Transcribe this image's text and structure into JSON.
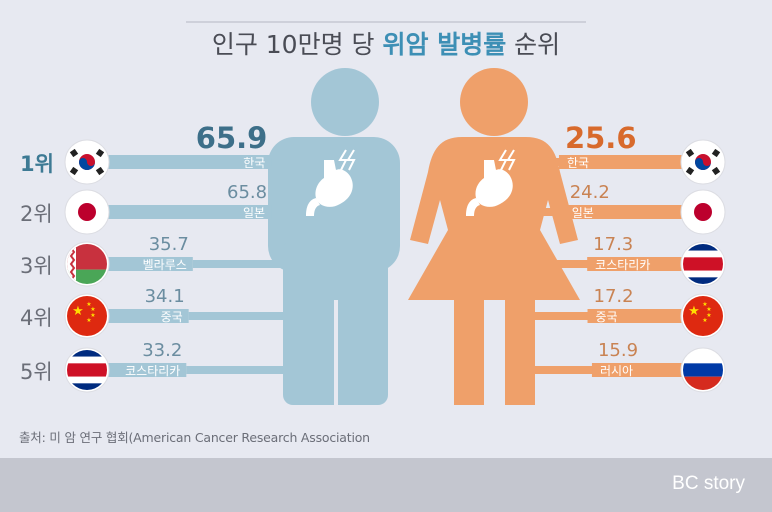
{
  "title": {
    "part1": "인구 10만명 당 ",
    "highlight": "위암 발병률",
    "part2": " 순위"
  },
  "colors": {
    "male": "#a3c6d6",
    "male_dark": "#3d6f89",
    "female": "#efa06a",
    "female_dark": "#d86a2c",
    "rank_text": "#6b6e78",
    "rank_first": "#3d7a94",
    "title_text": "#4a4c55",
    "title_highlight": "#3d8fb5"
  },
  "chart_data": {
    "type": "bar",
    "title": "인구 10만명 당 위암 발병률 순위",
    "ranks": [
      "1위",
      "2위",
      "3위",
      "4위",
      "5위"
    ],
    "series": [
      {
        "name": "male",
        "categories": [
          "한국",
          "일본",
          "벨라루스",
          "중국",
          "코스타리카"
        ],
        "values": [
          65.9,
          65.8,
          35.7,
          34.1,
          33.2
        ],
        "labels": [
          "65.9",
          "65.8",
          "35.7",
          "34.1",
          "33.2"
        ],
        "flags": [
          "korea",
          "japan",
          "belarus",
          "china",
          "costa-rica"
        ]
      },
      {
        "name": "female",
        "categories": [
          "한국",
          "일본",
          "코스타리카",
          "중국",
          "러시아"
        ],
        "values": [
          25.6,
          24.2,
          17.3,
          17.2,
          15.9
        ],
        "labels": [
          "25.6",
          "24.2",
          "17.3",
          "17.2",
          "15.9"
        ],
        "flags": [
          "korea",
          "japan",
          "costa-rica",
          "china",
          "russia"
        ]
      }
    ]
  },
  "icons": {
    "male_figure": "man-figure-icon",
    "female_figure": "woman-figure-icon",
    "stomach": "stomach-icon"
  },
  "source": "출처: 미 암 연구 협회(American Cancer Research Association",
  "brand": "BC story"
}
